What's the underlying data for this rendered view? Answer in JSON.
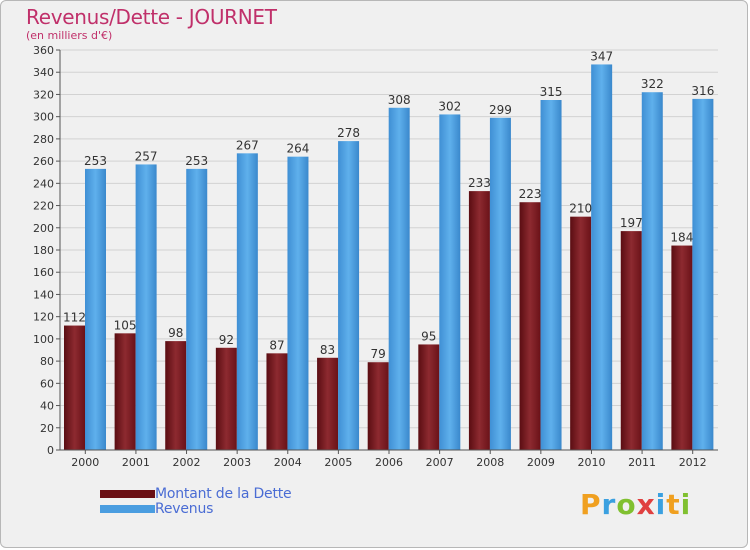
{
  "chart_data": {
    "type": "bar",
    "title": "Revenus/Dette - JOURNET",
    "subtitle": "(en milliers d'€)",
    "categories": [
      "2000",
      "2001",
      "2002",
      "2003",
      "2004",
      "2005",
      "2006",
      "2007",
      "2008",
      "2009",
      "2010",
      "2011",
      "2012"
    ],
    "series": [
      {
        "name": "Montant de la Dette",
        "color": "#7a1a20",
        "values": [
          112,
          105,
          98,
          92,
          87,
          83,
          79,
          95,
          233,
          223,
          210,
          197,
          184
        ]
      },
      {
        "name": "Revenus",
        "color": "#4a9de0",
        "values": [
          253,
          257,
          253,
          267,
          264,
          278,
          308,
          302,
          299,
          315,
          347,
          322,
          316
        ]
      }
    ],
    "ylim": [
      0,
      360
    ],
    "ytick_step": 20,
    "grid": true,
    "legend_position": "bottom-left",
    "logo_text": "Proxiti"
  }
}
